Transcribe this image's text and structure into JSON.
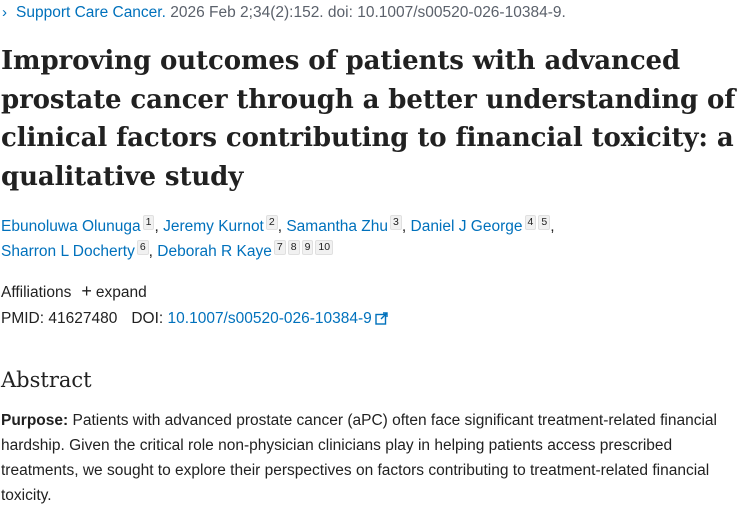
{
  "citation": {
    "chevron": "›",
    "journal": "Support Care Cancer.",
    "details": " 2026 Feb 2;34(2):152. doi: 10.1007/s00520-026-10384-9."
  },
  "title": "Improving outcomes of patients with advanced prostate cancer through a better understanding of clinical factors contributing to financial toxicity: a qualitative study",
  "authors": [
    {
      "name": "Ebunoluwa Olunuga",
      "affils": [
        "1"
      ]
    },
    {
      "name": "Jeremy Kurnot",
      "affils": [
        "2"
      ]
    },
    {
      "name": "Samantha Zhu",
      "affils": [
        "3"
      ]
    },
    {
      "name": "Daniel J George",
      "affils": [
        "4",
        "5"
      ]
    },
    {
      "name": "Sharron L Docherty",
      "affils": [
        "6"
      ]
    },
    {
      "name": "Deborah R Kaye",
      "affils": [
        "7",
        "8",
        "9",
        "10"
      ]
    }
  ],
  "affiliations": {
    "label": "Affiliations",
    "toggle": "expand"
  },
  "identifiers": {
    "pmid_label": "PMID:",
    "pmid": "41627480",
    "doi_label": "DOI:",
    "doi": "10.1007/s00520-026-10384-9"
  },
  "abstract": {
    "heading": "Abstract",
    "purpose_label": "Purpose:",
    "purpose_text": " Patients with advanced prostate cancer (aPC) often face significant treatment-related financial hardship. Given the critical role non-physician clinicians play in helping patients access prescribed treatments, we sought to explore their perspectives on factors contributing to treatment-related financial toxicity."
  },
  "colors": {
    "link": "#0071bc",
    "text": "#212121",
    "muted": "#5b616b"
  }
}
